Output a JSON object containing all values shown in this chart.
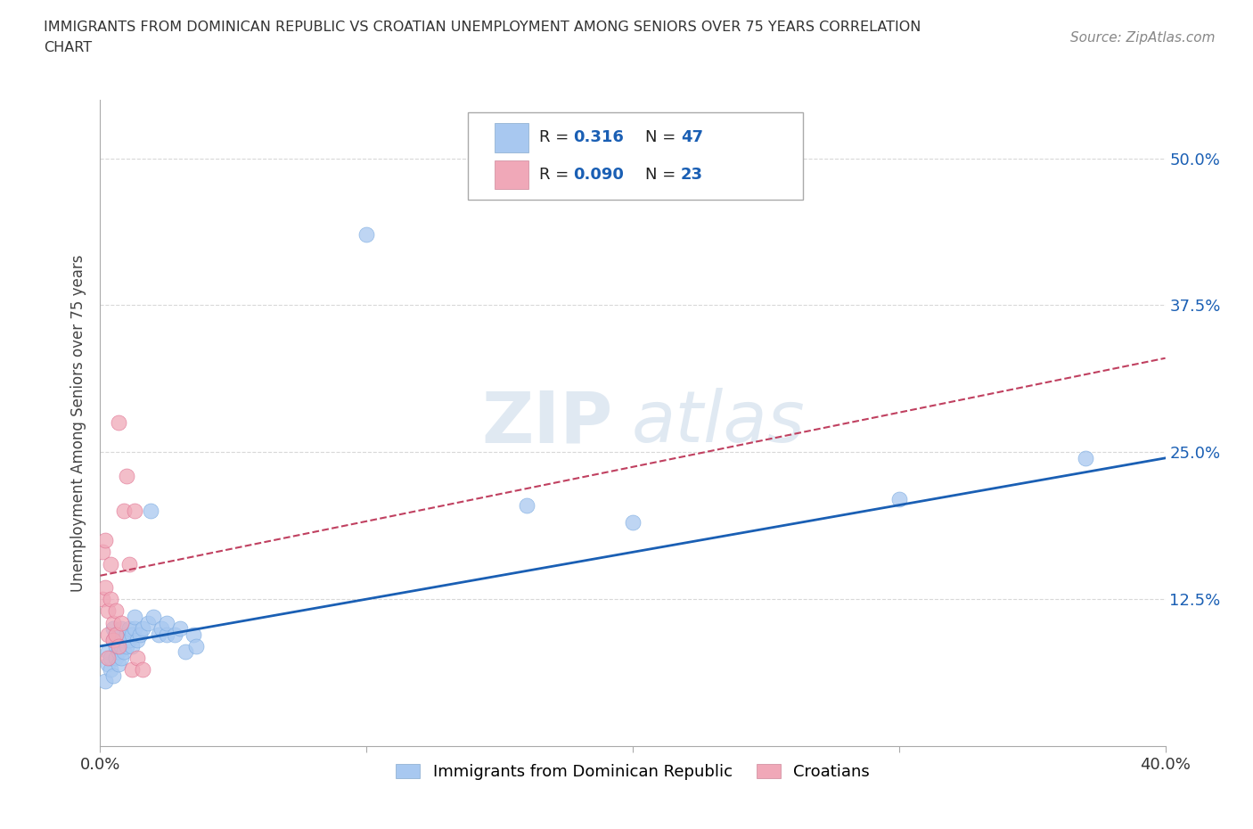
{
  "title_line1": "IMMIGRANTS FROM DOMINICAN REPUBLIC VS CROATIAN UNEMPLOYMENT AMONG SENIORS OVER 75 YEARS CORRELATION",
  "title_line2": "CHART",
  "source_text": "Source: ZipAtlas.com",
  "ylabel": "Unemployment Among Seniors over 75 years",
  "xlim": [
    0.0,
    0.4
  ],
  "ylim": [
    0.0,
    0.55
  ],
  "yticks": [
    0.0,
    0.125,
    0.25,
    0.375,
    0.5
  ],
  "right_ytick_labels": [
    "",
    "12.5%",
    "25.0%",
    "37.5%",
    "50.0%"
  ],
  "xticks": [
    0.0,
    0.1,
    0.2,
    0.3,
    0.4
  ],
  "xtick_labels": [
    "0.0%",
    "",
    "",
    "",
    "40.0%"
  ],
  "watermark_zip": "ZIP",
  "watermark_atlas": "atlas",
  "blue_R": 0.316,
  "blue_N": 47,
  "pink_R": 0.09,
  "pink_N": 23,
  "blue_color": "#a8c8f0",
  "pink_color": "#f0a8b8",
  "blue_line_color": "#1a5fb4",
  "pink_line_color": "#c04060",
  "legend_label_blue": "Immigrants from Dominican Republic",
  "legend_label_pink": "Croatians",
  "blue_scatter": [
    [
      0.002,
      0.055
    ],
    [
      0.003,
      0.07
    ],
    [
      0.003,
      0.08
    ],
    [
      0.004,
      0.065
    ],
    [
      0.004,
      0.075
    ],
    [
      0.005,
      0.06
    ],
    [
      0.005,
      0.09
    ],
    [
      0.005,
      0.1
    ],
    [
      0.006,
      0.075
    ],
    [
      0.006,
      0.085
    ],
    [
      0.006,
      0.095
    ],
    [
      0.007,
      0.07
    ],
    [
      0.007,
      0.08
    ],
    [
      0.007,
      0.09
    ],
    [
      0.008,
      0.075
    ],
    [
      0.008,
      0.085
    ],
    [
      0.008,
      0.1
    ],
    [
      0.009,
      0.08
    ],
    [
      0.009,
      0.09
    ],
    [
      0.01,
      0.085
    ],
    [
      0.01,
      0.095
    ],
    [
      0.011,
      0.09
    ],
    [
      0.011,
      0.1
    ],
    [
      0.012,
      0.085
    ],
    [
      0.012,
      0.095
    ],
    [
      0.013,
      0.1
    ],
    [
      0.013,
      0.11
    ],
    [
      0.014,
      0.09
    ],
    [
      0.015,
      0.095
    ],
    [
      0.016,
      0.1
    ],
    [
      0.018,
      0.105
    ],
    [
      0.019,
      0.2
    ],
    [
      0.02,
      0.11
    ],
    [
      0.022,
      0.095
    ],
    [
      0.023,
      0.1
    ],
    [
      0.025,
      0.095
    ],
    [
      0.025,
      0.105
    ],
    [
      0.028,
      0.095
    ],
    [
      0.03,
      0.1
    ],
    [
      0.032,
      0.08
    ],
    [
      0.035,
      0.095
    ],
    [
      0.036,
      0.085
    ],
    [
      0.1,
      0.435
    ],
    [
      0.16,
      0.205
    ],
    [
      0.2,
      0.19
    ],
    [
      0.3,
      0.21
    ],
    [
      0.37,
      0.245
    ]
  ],
  "pink_scatter": [
    [
      0.001,
      0.165
    ],
    [
      0.001,
      0.125
    ],
    [
      0.002,
      0.175
    ],
    [
      0.002,
      0.135
    ],
    [
      0.003,
      0.115
    ],
    [
      0.003,
      0.095
    ],
    [
      0.003,
      0.075
    ],
    [
      0.004,
      0.155
    ],
    [
      0.004,
      0.125
    ],
    [
      0.005,
      0.105
    ],
    [
      0.005,
      0.09
    ],
    [
      0.006,
      0.115
    ],
    [
      0.006,
      0.095
    ],
    [
      0.007,
      0.275
    ],
    [
      0.007,
      0.085
    ],
    [
      0.008,
      0.105
    ],
    [
      0.009,
      0.2
    ],
    [
      0.01,
      0.23
    ],
    [
      0.011,
      0.155
    ],
    [
      0.012,
      0.065
    ],
    [
      0.013,
      0.2
    ],
    [
      0.014,
      0.075
    ],
    [
      0.016,
      0.065
    ]
  ],
  "grid_color": "#d8d8d8",
  "background_color": "#ffffff"
}
